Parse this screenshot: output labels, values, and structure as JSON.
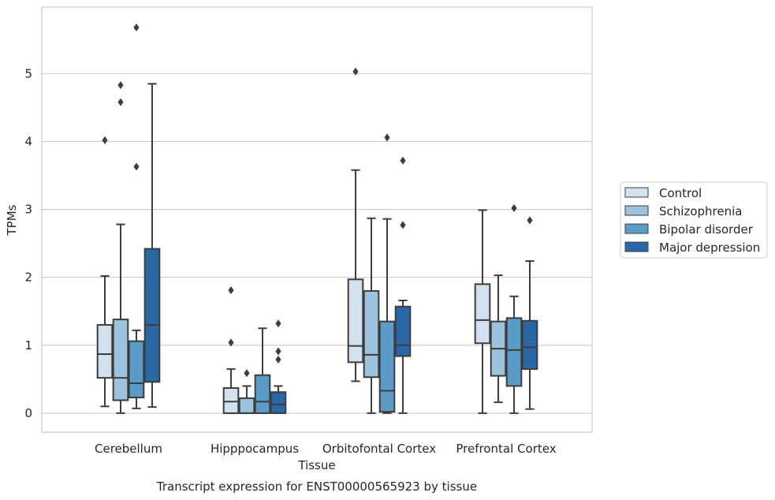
{
  "chart_data": {
    "type": "boxplot",
    "title": "Transcript expression for ENST00000565923 by tissue",
    "xlabel": "Tissue",
    "ylabel": "TPMs",
    "categories": [
      "Cerebellum",
      "Hipppocampus",
      "Orbitofontal Cortex",
      "Prefrontal Cortex"
    ],
    "ylim": [
      -0.28,
      5.98
    ],
    "yticks": [
      0,
      1,
      2,
      3,
      4,
      5
    ],
    "yticklabels": [
      "0",
      "1",
      "2",
      "3",
      "4",
      "5"
    ],
    "grid": true,
    "legend_position": "right",
    "series": [
      {
        "name": "Control",
        "color": "#d1e1f0",
        "boxes": [
          {
            "whisker_low": 0.1,
            "q1": 0.52,
            "median": 0.87,
            "q3": 1.3,
            "whisker_high": 2.02,
            "outliers": [
              4.02
            ]
          },
          {
            "whisker_low": 0.0,
            "q1": 0.0,
            "median": 0.17,
            "q3": 0.37,
            "whisker_high": 0.65,
            "outliers": [
              1.04,
              1.81
            ]
          },
          {
            "whisker_low": 0.47,
            "q1": 0.75,
            "median": 0.99,
            "q3": 1.97,
            "whisker_high": 3.58,
            "outliers": [
              5.03
            ]
          },
          {
            "whisker_low": 0.0,
            "q1": 1.03,
            "median": 1.37,
            "q3": 1.9,
            "whisker_high": 2.99,
            "outliers": []
          }
        ]
      },
      {
        "name": "Schizophrenia",
        "color": "#9cc3dc",
        "boxes": [
          {
            "whisker_low": 0.0,
            "q1": 0.19,
            "median": 0.52,
            "q3": 1.38,
            "whisker_high": 2.78,
            "outliers": [
              4.58,
              4.83
            ]
          },
          {
            "whisker_low": 0.0,
            "q1": 0.0,
            "median": 0.0,
            "q3": 0.22,
            "whisker_high": 0.4,
            "outliers": [
              0.59
            ]
          },
          {
            "whisker_low": 0.0,
            "q1": 0.53,
            "median": 0.86,
            "q3": 1.8,
            "whisker_high": 2.87,
            "outliers": []
          },
          {
            "whisker_low": 0.16,
            "q1": 0.55,
            "median": 0.95,
            "q3": 1.35,
            "whisker_high": 2.03,
            "outliers": []
          }
        ]
      },
      {
        "name": "Bipolar disorder",
        "color": "#5a9bc8",
        "boxes": [
          {
            "whisker_low": 0.07,
            "q1": 0.23,
            "median": 0.44,
            "q3": 1.06,
            "whisker_high": 1.22,
            "outliers": [
              3.63,
              5.68
            ]
          },
          {
            "whisker_low": 0.0,
            "q1": 0.0,
            "median": 0.17,
            "q3": 0.56,
            "whisker_high": 1.25,
            "outliers": []
          },
          {
            "whisker_low": 0.0,
            "q1": 0.02,
            "median": 0.33,
            "q3": 1.35,
            "whisker_high": 2.86,
            "outliers": [
              4.06
            ]
          },
          {
            "whisker_low": 0.0,
            "q1": 0.4,
            "median": 0.93,
            "q3": 1.4,
            "whisker_high": 1.72,
            "outliers": [
              3.02
            ]
          }
        ]
      },
      {
        "name": "Major depression",
        "color": "#2a67a6",
        "boxes": [
          {
            "whisker_low": 0.09,
            "q1": 0.46,
            "median": 1.3,
            "q3": 2.42,
            "whisker_high": 4.85,
            "outliers": []
          },
          {
            "whisker_low": 0.0,
            "q1": 0.0,
            "median": 0.13,
            "q3": 0.31,
            "whisker_high": 0.4,
            "outliers": [
              0.79,
              0.91,
              1.32
            ]
          },
          {
            "whisker_low": 0.0,
            "q1": 0.84,
            "median": 1.0,
            "q3": 1.57,
            "whisker_high": 1.66,
            "outliers": [
              2.77,
              3.72
            ]
          },
          {
            "whisker_low": 0.06,
            "q1": 0.65,
            "median": 0.97,
            "q3": 1.36,
            "whisker_high": 2.24,
            "outliers": [
              2.84
            ]
          }
        ]
      }
    ]
  },
  "colors": {
    "box_edge": "#3d3d3d",
    "grid": "#cccccc",
    "axes_border": "#cccccc",
    "text": "#262626",
    "background": "#ffffff"
  }
}
